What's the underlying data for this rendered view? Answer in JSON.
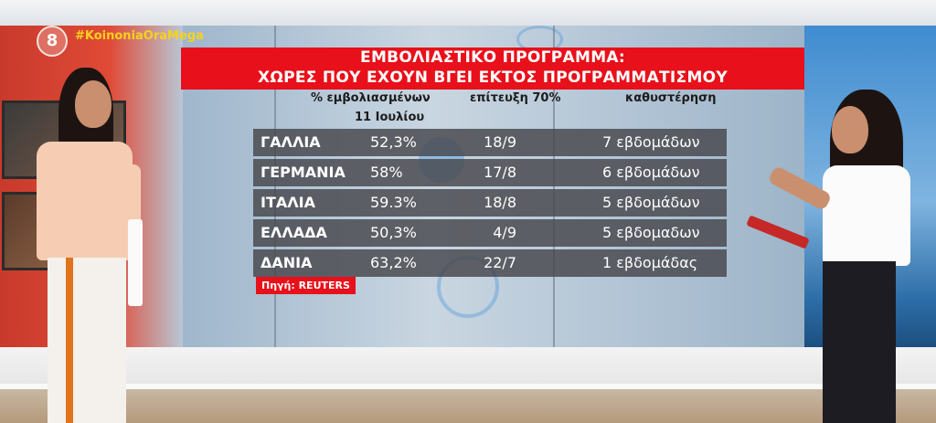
{
  "channel": {
    "logo_glyph": "8",
    "hashtag": "#KoinoniaOraMega"
  },
  "graphic": {
    "title_line1": "ΕΜΒΟΛΙΑΣΤΙΚΟ ΠΡΟΓΡΑΜΜΑ:",
    "title_line2": "ΧΩΡΕΣ ΠΟΥ ΕΧΟΥΝ ΒΓΕΙ ΕΚΤΟΣ ΠΡΟΓΡΑΜΜΑΤΙΣΜΟΥ",
    "columns": {
      "vaccinated": "% εμβολιασμένων",
      "date_note": "11 Ιουλίου",
      "target": "επίτευξη  70%",
      "delay": "καθυστέρηση"
    },
    "rows": [
      {
        "country": "ΓΑΛΛΙΑ",
        "pct": "52,3%",
        "date": "18/9",
        "delay": "7 εβδομάδων"
      },
      {
        "country": "ΓΕΡΜΑΝΙΑ",
        "pct": "58%",
        "date": "17/8",
        "delay": "6 εβδομάδων"
      },
      {
        "country": "ΙΤΑΛΙΑ",
        "pct": "59.3%",
        "date": "18/8",
        "delay": "5 εβδομάδων"
      },
      {
        "country": "ΕΛΛΑΔΑ",
        "pct": "50,3%",
        "date": "4/9",
        "delay": "5 εβδομαδων"
      },
      {
        "country": "ΔΑΝΙΑ",
        "pct": "63,2%",
        "date": "22/7",
        "delay": "1 εβδομάδας"
      }
    ],
    "source": "Πηγή: REUTERS"
  },
  "colors": {
    "accent_red": "#e8101a",
    "hashtag_yellow": "#f7d21c",
    "row_bg": "#46464b"
  }
}
